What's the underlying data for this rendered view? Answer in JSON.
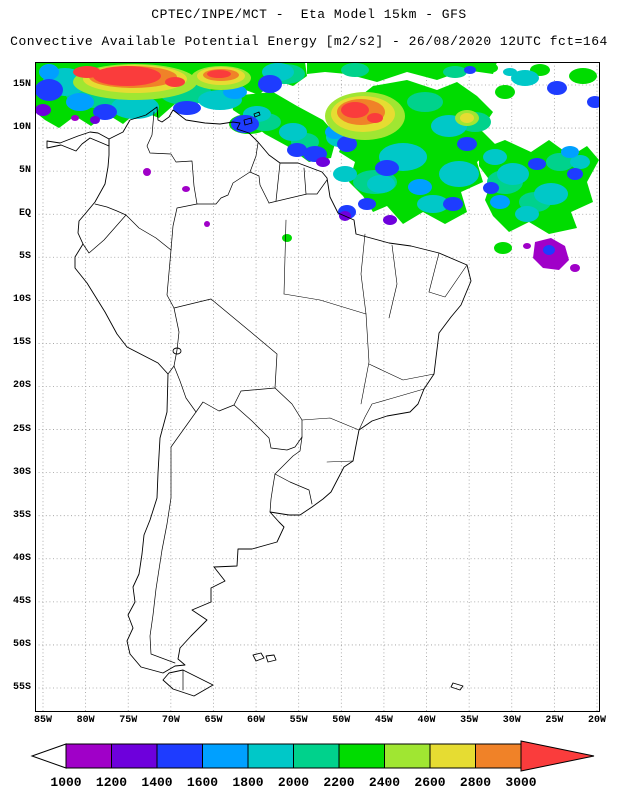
{
  "header": {
    "line1": "CPTEC/INPE/MCT -  Eta Model 15km - GFS",
    "line2": "Convective Available Potential Energy [m2/s2] - 26/08/2020 12UTC fct=164"
  },
  "map": {
    "lat_labels": [
      "15N",
      "10N",
      "5N",
      "EQ",
      "5S",
      "10S",
      "15S",
      "20S",
      "25S",
      "30S",
      "35S",
      "40S",
      "45S",
      "50S",
      "55S"
    ],
    "lon_labels": [
      "85W",
      "80W",
      "75W",
      "70W",
      "65W",
      "60W",
      "55W",
      "50W",
      "45W",
      "40W",
      "35W",
      "30W",
      "25W",
      "20W"
    ]
  },
  "colorbar": {
    "labels": [
      "1000",
      "1200",
      "1400",
      "1600",
      "1800",
      "2000",
      "2200",
      "2400",
      "2600",
      "2800",
      "3000"
    ],
    "palette": {
      "1000": "#A000C8",
      "1200": "#6E00DC",
      "1400": "#1E3CFF",
      "1600": "#00A0FF",
      "1800": "#00C8C8",
      "2000": "#00D28C",
      "2200": "#00DC00",
      "2400": "#A0E632",
      "2600": "#E6DC32",
      "2800": "#F08228",
      "3000": "#FA3C3C"
    },
    "under_color": "#FFFFFF",
    "over_color": "#FA3C3C"
  },
  "chart_data": {
    "type": "heatmap",
    "title": "Convective Available Potential Energy [m2/s2]",
    "source": "CPTEC/INPE/MCT",
    "model": "Eta Model 15km - GFS",
    "valid": "26/08/2020 12UTC fct=164",
    "levels": [
      1000,
      1200,
      1400,
      1600,
      1800,
      2000,
      2200,
      2400,
      2600,
      2800,
      3000
    ],
    "lat_ticks": [
      "15N",
      "10N",
      "5N",
      "EQ",
      "5S",
      "10S",
      "15S",
      "20S",
      "25S",
      "30S",
      "35S",
      "40S",
      "45S",
      "50S",
      "55S"
    ],
    "lon_ticks": [
      "85W",
      "80W",
      "75W",
      "70W",
      "65W",
      "60W",
      "55W",
      "50W",
      "45W",
      "40W",
      "35W",
      "30W",
      "25W",
      "20W"
    ],
    "legend_position": "bottom"
  }
}
